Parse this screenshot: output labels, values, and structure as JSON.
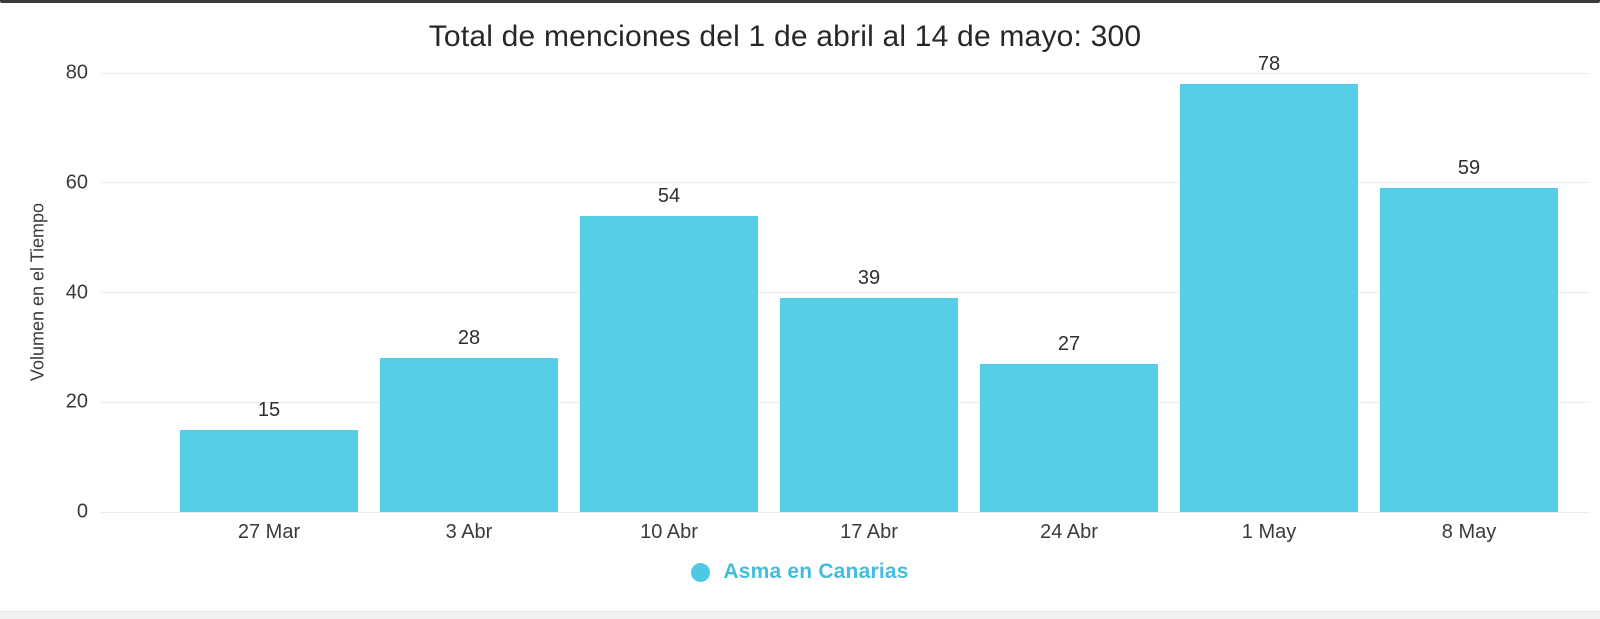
{
  "chart_data": {
    "type": "bar",
    "title": "Total de menciones del 1 de abril al 14 de mayo: 300",
    "ylabel": "Volumen en el Tiempo",
    "xlabel": "",
    "categories": [
      "27 Mar",
      "3 Abr",
      "10 Abr",
      "17 Abr",
      "24 Abr",
      "1 May",
      "8 May"
    ],
    "values": [
      15,
      28,
      54,
      39,
      27,
      78,
      59
    ],
    "total_mentions": 300,
    "ylim": [
      0,
      80
    ],
    "yticks": [
      0,
      20,
      40,
      60,
      80
    ],
    "grid": "horizontal",
    "bar_labels_shown": true,
    "legend": {
      "position": "bottom-center",
      "label": "Asma en Canarias"
    },
    "colors": {
      "bar": "#55CDE4",
      "legend_dot": "#4EC9E4",
      "legend_text": "#45BCDD",
      "grid_line": "#ececec",
      "title_text": "#272727",
      "axis_text": "#3a3a3a",
      "window_top_border": "#3a3a3a",
      "bottom_strip": "#f1f1f1"
    }
  }
}
